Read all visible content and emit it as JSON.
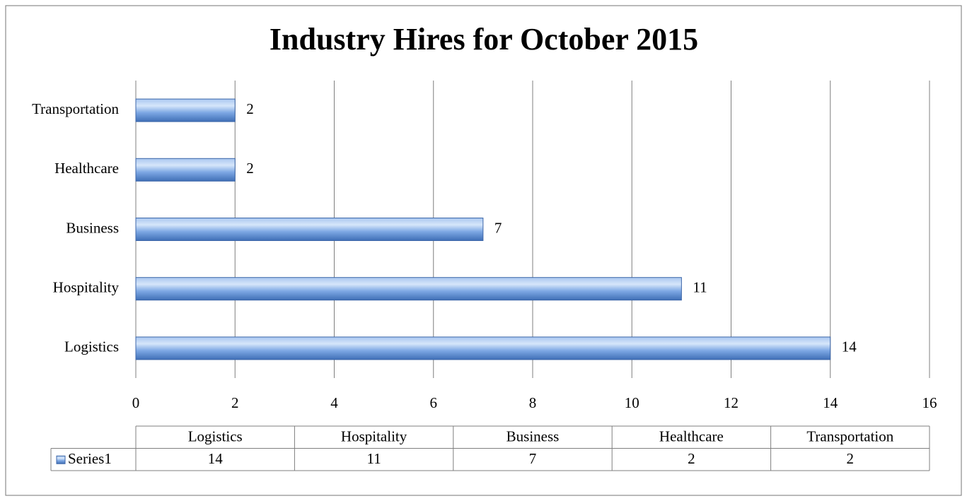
{
  "chart_data": {
    "type": "bar",
    "orientation": "horizontal",
    "title": "Industry Hires for October 2015",
    "categories": [
      "Logistics",
      "Hospitality",
      "Business",
      "Healthcare",
      "Transportation"
    ],
    "series": [
      {
        "name": "Series1",
        "color": "#6e9de0",
        "values": [
          14,
          11,
          7,
          2,
          2
        ]
      }
    ],
    "xlim": [
      0,
      16
    ],
    "xticks": [
      0,
      2,
      4,
      6,
      8,
      10,
      12,
      14,
      16
    ],
    "grid": true,
    "data_table": true
  }
}
